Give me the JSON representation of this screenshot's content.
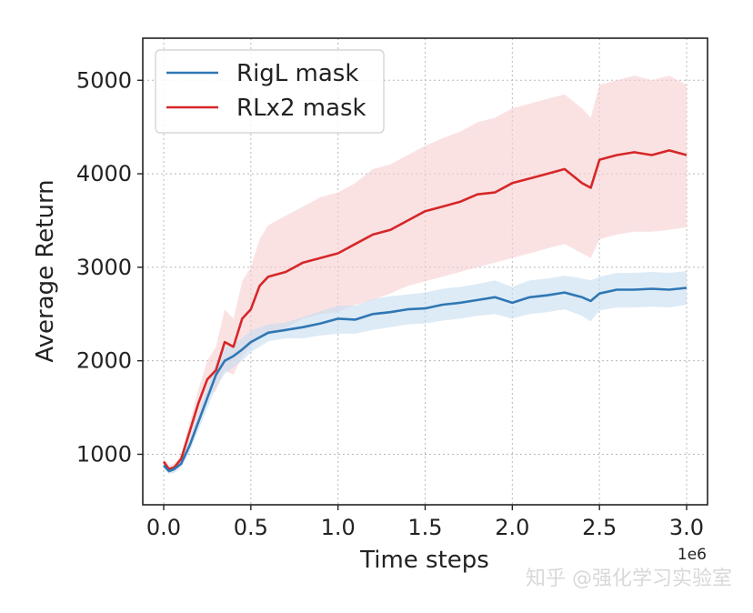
{
  "chart_data": {
    "type": "line",
    "title": "",
    "xlabel": "Time steps",
    "ylabel": "Average Return",
    "x_offset_label": "1e6",
    "xlim": [
      -0.12,
      3.12
    ],
    "ylim": [
      460,
      5450
    ],
    "x_ticks": [
      0.0,
      0.5,
      1.0,
      1.5,
      2.0,
      2.5,
      3.0
    ],
    "x_tick_labels": [
      "0.0",
      "0.5",
      "1.0",
      "1.5",
      "2.0",
      "2.5",
      "3.0"
    ],
    "y_ticks": [
      1000,
      2000,
      3000,
      4000,
      5000
    ],
    "y_tick_labels": [
      "1000",
      "2000",
      "3000",
      "4000",
      "5000"
    ],
    "grid": true,
    "legend_position": "top-left",
    "series": [
      {
        "name": "RigL mask",
        "color": "#2f77b4",
        "band_color": "#c6ddf0",
        "x": [
          0.0,
          0.03,
          0.06,
          0.1,
          0.15,
          0.2,
          0.25,
          0.3,
          0.35,
          0.4,
          0.45,
          0.5,
          0.6,
          0.7,
          0.8,
          0.9,
          1.0,
          1.1,
          1.2,
          1.3,
          1.4,
          1.5,
          1.6,
          1.7,
          1.8,
          1.9,
          2.0,
          2.1,
          2.2,
          2.3,
          2.4,
          2.45,
          2.5,
          2.6,
          2.7,
          2.8,
          2.9,
          3.0
        ],
        "y": [
          880,
          820,
          840,
          900,
          1100,
          1350,
          1600,
          1850,
          2000,
          2050,
          2120,
          2200,
          2300,
          2330,
          2360,
          2400,
          2450,
          2440,
          2500,
          2520,
          2550,
          2560,
          2600,
          2620,
          2650,
          2680,
          2620,
          2680,
          2700,
          2730,
          2680,
          2640,
          2720,
          2760,
          2760,
          2770,
          2760,
          2780
        ],
        "lower": [
          850,
          790,
          800,
          860,
          1030,
          1260,
          1490,
          1720,
          1860,
          1930,
          2000,
          2090,
          2210,
          2240,
          2240,
          2270,
          2290,
          2290,
          2330,
          2360,
          2390,
          2400,
          2430,
          2450,
          2480,
          2500,
          2450,
          2500,
          2520,
          2550,
          2480,
          2420,
          2540,
          2570,
          2570,
          2580,
          2570,
          2600
        ],
        "upper": [
          920,
          860,
          880,
          950,
          1170,
          1440,
          1710,
          1980,
          2140,
          2180,
          2240,
          2320,
          2390,
          2410,
          2470,
          2530,
          2590,
          2590,
          2660,
          2690,
          2710,
          2730,
          2770,
          2790,
          2820,
          2860,
          2790,
          2860,
          2880,
          2910,
          2880,
          2860,
          2900,
          2940,
          2940,
          2950,
          2940,
          2960
        ]
      },
      {
        "name": "RLx2 mask",
        "color": "#d62728",
        "band_color": "#f7cfd0",
        "x": [
          0.0,
          0.03,
          0.06,
          0.1,
          0.15,
          0.2,
          0.25,
          0.3,
          0.35,
          0.4,
          0.45,
          0.5,
          0.55,
          0.6,
          0.7,
          0.8,
          0.9,
          1.0,
          1.1,
          1.2,
          1.3,
          1.4,
          1.5,
          1.6,
          1.7,
          1.8,
          1.9,
          2.0,
          2.1,
          2.2,
          2.3,
          2.4,
          2.45,
          2.5,
          2.6,
          2.7,
          2.8,
          2.9,
          3.0
        ],
        "y": [
          920,
          840,
          860,
          950,
          1250,
          1550,
          1800,
          1900,
          2200,
          2150,
          2450,
          2550,
          2800,
          2900,
          2950,
          3050,
          3100,
          3150,
          3250,
          3350,
          3400,
          3500,
          3600,
          3650,
          3700,
          3780,
          3800,
          3900,
          3950,
          4000,
          4050,
          3900,
          3850,
          4150,
          4200,
          4230,
          4200,
          4250,
          4200
        ],
        "lower": [
          880,
          800,
          820,
          900,
          1150,
          1400,
          1620,
          1680,
          1900,
          1850,
          2050,
          2150,
          2250,
          2300,
          2350,
          2450,
          2500,
          2520,
          2600,
          2650,
          2720,
          2800,
          2850,
          2900,
          2950,
          3000,
          3050,
          3100,
          3150,
          3200,
          3250,
          3150,
          3100,
          3300,
          3350,
          3380,
          3380,
          3400,
          3430
        ],
        "upper": [
          960,
          880,
          900,
          1000,
          1350,
          1700,
          2000,
          2150,
          2550,
          2450,
          2850,
          3000,
          3300,
          3450,
          3550,
          3650,
          3750,
          3800,
          3900,
          4050,
          4100,
          4200,
          4300,
          4380,
          4450,
          4550,
          4600,
          4700,
          4750,
          4800,
          4850,
          4700,
          4600,
          4950,
          5000,
          5050,
          5000,
          5050,
          4950
        ]
      }
    ]
  },
  "watermark": "知乎 @强化学习实验室"
}
